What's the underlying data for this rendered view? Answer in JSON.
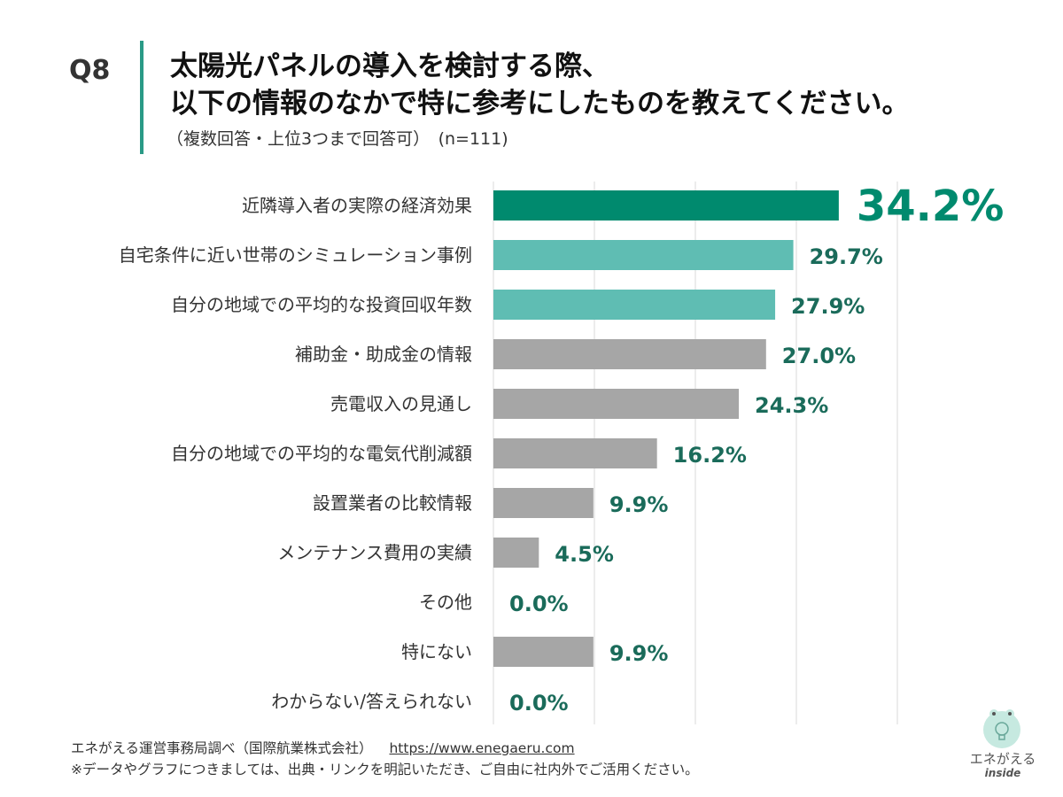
{
  "header": {
    "question_no": "Q8",
    "title_line1": "太陽光パネルの導入を検討する際、",
    "title_line2": "以下の情報のなかで特に参考にしたものを教えてください。",
    "subtitle": "（複数回答・上位3つまで回答可）　(n=111)"
  },
  "chart_data": {
    "type": "bar",
    "orientation": "horizontal",
    "categories": [
      "近隣導入者の実際の経済効果",
      "自宅条件に近い世帯のシミュレーション事例",
      "自分の地域での平均的な投資回収年数",
      "補助金・助成金の情報",
      "売電収入の見通し",
      "自分の地域での平均的な電気代削減額",
      "設置業者の比較情報",
      "メンテナンス費用の実績",
      "その他",
      "特にない",
      "わからない/答えられない"
    ],
    "values": [
      34.2,
      29.7,
      27.9,
      27.0,
      24.3,
      16.2,
      9.9,
      4.5,
      0.0,
      9.9,
      0.0
    ],
    "value_labels": [
      "34.2%",
      "29.7%",
      "27.9%",
      "27.0%",
      "24.3%",
      "16.2%",
      "9.9%",
      "4.5%",
      "0.0%",
      "9.9%",
      "0.0%"
    ],
    "xlim": [
      0,
      40
    ],
    "grid": true,
    "colors": {
      "top1": "#008a6e",
      "top2_3": "#5fbdb3",
      "others": "#a6a6a6",
      "label": "#1a6b5a"
    }
  },
  "footer": {
    "source": "エネがえる運営事務局調べ（国際航業株式会社）",
    "url": "https://www.enegaeru.com",
    "note": "※データやグラフにつきましては、出典・リンクを明記いただき、ご自由に社内外でご活用ください。"
  },
  "logo": {
    "icon": "lightbulb-frog-icon",
    "text": "エネがえる",
    "sub": "inside"
  }
}
